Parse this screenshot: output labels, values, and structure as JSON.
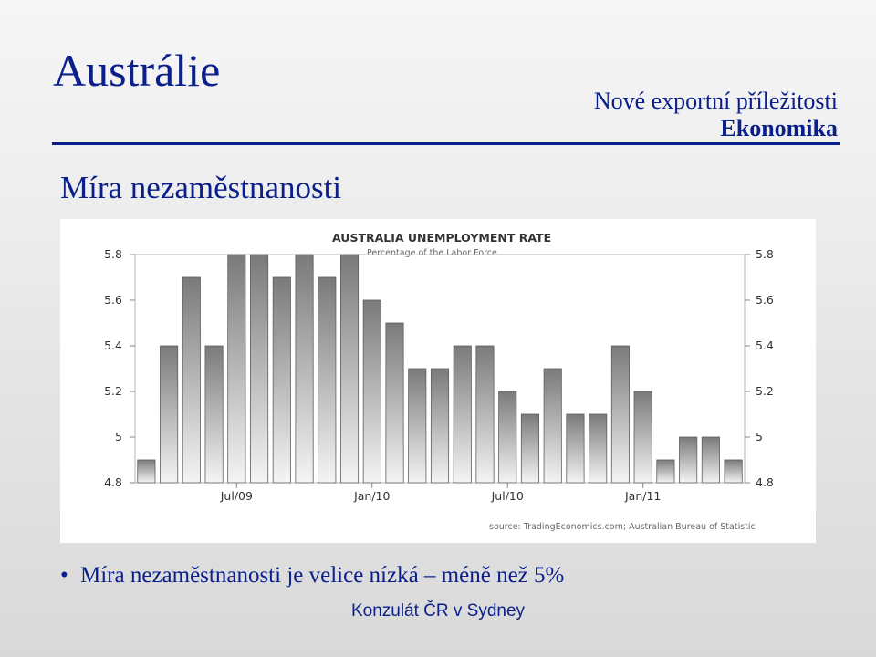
{
  "slide": {
    "title": "Austrálie",
    "topic_line1": "Nové exportní příležitosti",
    "topic_line2": "Ekonomika",
    "section_heading": "Míra nezaměstnanosti",
    "bullet_text": "Míra nezaměstnanosti je velice nízká – méně než 5%",
    "footer": "Konzulát ČR v Sydney"
  },
  "chart_data": {
    "type": "bar",
    "title": "AUSTRALIA UNEMPLOYMENT RATE",
    "subtitle": "Percentage of the Labor Force",
    "source": "source: TradingEconomics.com; Australian Bureau of Statistic",
    "ylim": [
      4.8,
      5.8
    ],
    "yticks": [
      "5.8",
      "5.6",
      "5.4",
      "5.2",
      "5",
      "4.8"
    ],
    "xticks": [
      {
        "label": "Jul/09",
        "index": 4.5
      },
      {
        "label": "Jan/10",
        "index": 10.5
      },
      {
        "label": "Jul/10",
        "index": 16.5
      },
      {
        "label": "Jan/11",
        "index": 22.5
      }
    ],
    "values": [
      4.9,
      5.4,
      5.7,
      5.4,
      5.8,
      5.8,
      5.7,
      5.8,
      5.7,
      5.8,
      5.6,
      5.5,
      5.3,
      5.3,
      5.4,
      5.4,
      5.2,
      5.1,
      5.3,
      5.1,
      5.1,
      5.4,
      5.2,
      4.9,
      5.0,
      5.0,
      4.9
    ],
    "grid": false,
    "bar_color": "#8c8c8c"
  }
}
